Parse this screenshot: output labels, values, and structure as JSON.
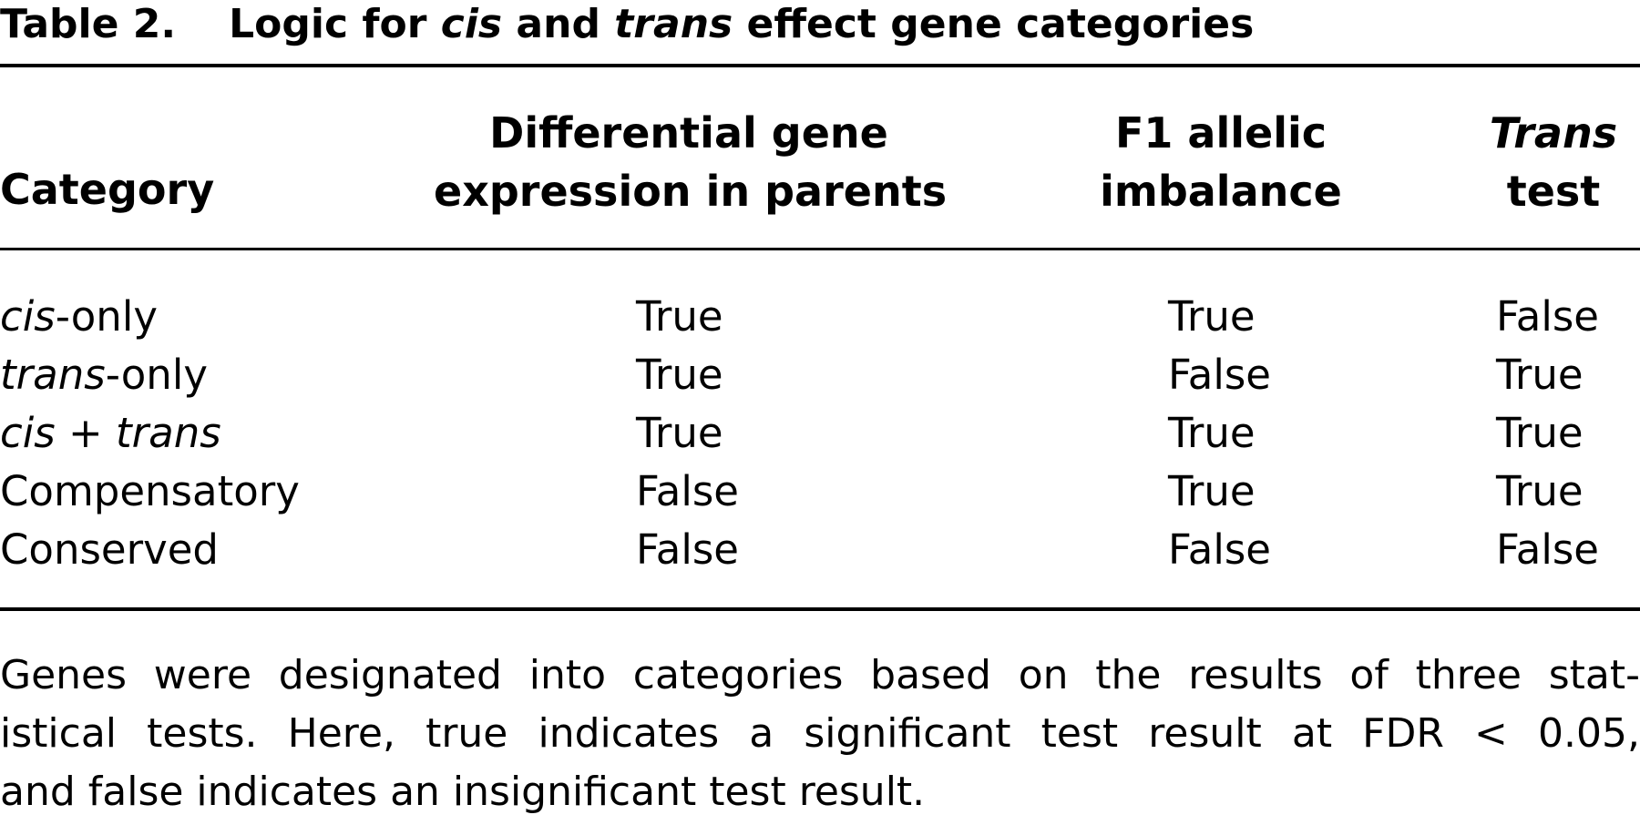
{
  "title": {
    "label": "Table 2.",
    "part1": "Logic for ",
    "italic1": "cis",
    "part2": " and ",
    "italic2": "trans",
    "part3": " effect gene categories"
  },
  "table": {
    "headers": {
      "category": "Category",
      "diff_line1": "Differential gene",
      "diff_line2": "expression in parents",
      "f1_line1": "F1 allelic",
      "f1_line2": "imbalance",
      "trans_line1": "Trans",
      "trans_line2": "test"
    },
    "rows": [
      {
        "category_italic": "cis",
        "category_rest": "-only",
        "diff": "True",
        "f1": "True",
        "trans": "False"
      },
      {
        "category_italic": "trans",
        "category_rest": "-only",
        "diff": "True",
        "f1": "False",
        "trans": "True"
      },
      {
        "category_italic": "cis + trans",
        "category_rest": "",
        "diff": "True",
        "f1": "True",
        "trans": "True"
      },
      {
        "category_italic": "",
        "category_rest": "Compensatory",
        "diff": "False",
        "f1": "True",
        "trans": "True"
      },
      {
        "category_italic": "",
        "category_rest": "Conserved",
        "diff": "False",
        "f1": "False",
        "trans": "False"
      }
    ]
  },
  "footnote": {
    "line1": "Genes were designated into categories based on the results of three stat-",
    "line2": "istical tests. Here, true indicates a significant test result at FDR < 0.05,",
    "line3": "and false indicates an insignificant test result."
  }
}
